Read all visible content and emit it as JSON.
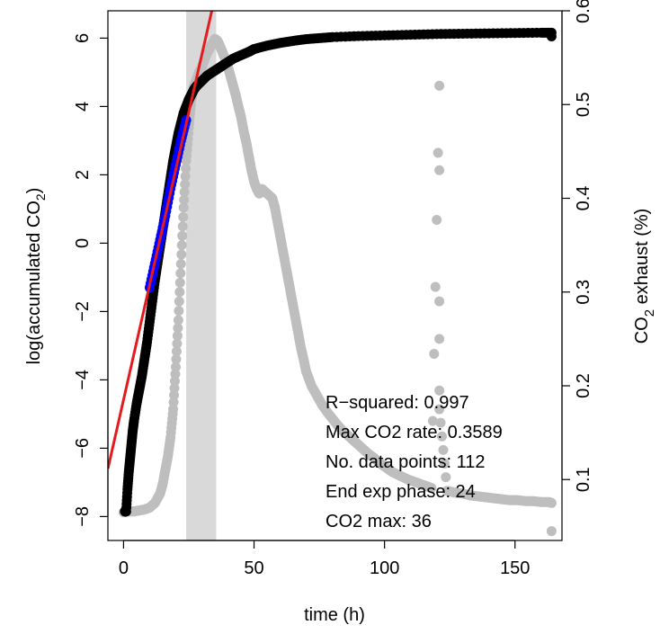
{
  "chart_data": {
    "type": "scatter",
    "xlabel": "time (h)",
    "ylabel_left": "log(accumulated CO",
    "ylabel_left_sub": "2",
    "ylabel_left_close": ")",
    "ylabel_right": "CO",
    "ylabel_right_sub": "2",
    "ylabel_right_rest": " exhaust (%)",
    "xlim": [
      -6,
      168
    ],
    "ylim_left": [
      -8.7,
      6.8
    ],
    "ylim_right": [
      0.035,
      0.6
    ],
    "x_ticks": [
      0,
      50,
      100,
      150
    ],
    "y_left_ticks": [
      -8,
      -6,
      -4,
      -2,
      0,
      2,
      4,
      6
    ],
    "y_right_ticks": [
      0.1,
      0.2,
      0.3,
      0.4,
      0.5,
      0.6
    ],
    "exp_phase_band": [
      24,
      35.5
    ],
    "band_color": "#d9d9d9",
    "fit_line": {
      "color": "#e41a1c",
      "slope": 0.3589,
      "points": [
        [
          -6,
          -6.6
        ],
        [
          35,
          7.2
        ]
      ]
    },
    "series": [
      {
        "color": "#000000",
        "axis": "left",
        "points": [
          [
            0.5,
            -7.85
          ],
          [
            1,
            -7.85
          ],
          [
            1.5,
            -7.2
          ],
          [
            2,
            -6.7
          ],
          [
            2.5,
            -6.3
          ],
          [
            3,
            -5.9
          ],
          [
            3.5,
            -5.5
          ],
          [
            4,
            -5.2
          ],
          [
            5,
            -4.7
          ],
          [
            6,
            -4.3
          ],
          [
            7,
            -3.9
          ],
          [
            8,
            -3.4
          ],
          [
            9,
            -2.9
          ],
          [
            10,
            -2.3
          ],
          [
            11,
            -1.7
          ],
          [
            12,
            -1.1
          ],
          [
            13,
            -0.6
          ],
          [
            14,
            -0.1
          ],
          [
            15,
            0.4
          ],
          [
            16,
            0.9
          ],
          [
            17,
            1.4
          ],
          [
            18,
            1.9
          ],
          [
            19,
            2.4
          ],
          [
            20,
            2.8
          ],
          [
            21,
            3.2
          ],
          [
            22,
            3.5
          ],
          [
            23,
            3.8
          ],
          [
            24,
            4.0
          ],
          [
            25,
            4.2
          ],
          [
            26,
            4.35
          ],
          [
            27,
            4.5
          ],
          [
            28,
            4.6
          ],
          [
            30,
            4.75
          ],
          [
            32,
            4.9
          ],
          [
            34,
            5.0
          ],
          [
            36,
            5.1
          ],
          [
            38,
            5.2
          ],
          [
            40,
            5.3
          ],
          [
            42,
            5.4
          ],
          [
            45,
            5.5
          ],
          [
            48,
            5.6
          ],
          [
            50,
            5.68
          ],
          [
            55,
            5.78
          ],
          [
            60,
            5.86
          ],
          [
            65,
            5.92
          ],
          [
            70,
            5.97
          ],
          [
            75,
            6.0
          ],
          [
            80,
            6.03
          ],
          [
            90,
            6.06
          ],
          [
            100,
            6.08
          ],
          [
            110,
            6.1
          ],
          [
            120,
            6.12
          ],
          [
            130,
            6.13
          ],
          [
            140,
            6.14
          ],
          [
            150,
            6.15
          ],
          [
            160,
            6.16
          ],
          [
            164,
            6.16
          ],
          [
            164,
            6.05
          ]
        ]
      },
      {
        "color": "#0000ff",
        "axis": "left",
        "points": [
          [
            10,
            -1.3
          ],
          [
            12,
            -0.6
          ],
          [
            14,
            0.1
          ],
          [
            16,
            0.8
          ],
          [
            18,
            1.6
          ],
          [
            20,
            2.3
          ],
          [
            22,
            3.0
          ],
          [
            24,
            3.6
          ]
        ]
      },
      {
        "color": "#bebebe",
        "axis": "right",
        "points": [
          [
            0,
            0.065
          ],
          [
            2,
            0.066
          ],
          [
            4,
            0.066
          ],
          [
            6,
            0.067
          ],
          [
            8,
            0.068
          ],
          [
            10,
            0.07
          ],
          [
            12,
            0.075
          ],
          [
            14,
            0.085
          ],
          [
            15,
            0.095
          ],
          [
            16,
            0.11
          ],
          [
            17,
            0.125
          ],
          [
            18,
            0.145
          ],
          [
            19,
            0.175
          ],
          [
            20,
            0.22
          ],
          [
            21,
            0.27
          ],
          [
            22,
            0.33
          ],
          [
            23,
            0.39
          ],
          [
            24,
            0.44
          ],
          [
            25,
            0.475
          ],
          [
            26,
            0.505
          ],
          [
            27,
            0.52
          ],
          [
            28,
            0.527
          ],
          [
            29,
            0.535
          ],
          [
            30,
            0.54
          ],
          [
            31,
            0.548
          ],
          [
            32,
            0.555
          ],
          [
            33,
            0.56
          ],
          [
            34,
            0.565
          ],
          [
            35,
            0.57
          ],
          [
            36,
            0.568
          ],
          [
            37,
            0.562
          ],
          [
            38,
            0.555
          ],
          [
            39,
            0.548
          ],
          [
            40,
            0.54
          ],
          [
            41,
            0.53
          ],
          [
            42,
            0.52
          ],
          [
            43,
            0.51
          ],
          [
            44,
            0.498
          ],
          [
            45,
            0.487
          ],
          [
            46,
            0.472
          ],
          [
            47,
            0.46
          ],
          [
            48,
            0.445
          ],
          [
            49,
            0.43
          ],
          [
            50,
            0.418
          ],
          [
            51,
            0.41
          ],
          [
            52,
            0.405
          ],
          [
            53,
            0.41
          ],
          [
            55,
            0.405
          ],
          [
            57,
            0.4
          ],
          [
            58,
            0.39
          ],
          [
            59,
            0.375
          ],
          [
            60,
            0.36
          ],
          [
            61,
            0.345
          ],
          [
            62,
            0.33
          ],
          [
            63,
            0.315
          ],
          [
            64,
            0.3
          ],
          [
            65,
            0.285
          ],
          [
            66,
            0.27
          ],
          [
            67,
            0.255
          ],
          [
            68,
            0.24
          ],
          [
            69,
            0.228
          ],
          [
            70,
            0.215
          ],
          [
            72,
            0.2
          ],
          [
            74,
            0.19
          ],
          [
            76,
            0.18
          ],
          [
            78,
            0.172
          ],
          [
            80,
            0.165
          ],
          [
            82,
            0.158
          ],
          [
            84,
            0.152
          ],
          [
            86,
            0.147
          ],
          [
            88,
            0.142
          ],
          [
            90,
            0.137
          ],
          [
            92,
            0.132
          ],
          [
            94,
            0.127
          ],
          [
            96,
            0.123
          ],
          [
            98,
            0.118
          ],
          [
            100,
            0.114
          ],
          [
            103,
            0.108
          ],
          [
            106,
            0.104
          ],
          [
            109,
            0.1
          ],
          [
            112,
            0.097
          ],
          [
            115,
            0.094
          ],
          [
            118,
            0.091
          ],
          [
            121,
            0.52
          ],
          [
            121,
            0.43
          ],
          [
            121,
            0.29
          ],
          [
            121,
            0.25
          ],
          [
            121,
            0.195
          ],
          [
            121,
            0.175
          ],
          [
            124,
            0.088
          ],
          [
            127,
            0.086
          ],
          [
            130,
            0.085
          ],
          [
            133,
            0.083
          ],
          [
            136,
            0.082
          ],
          [
            139,
            0.081
          ],
          [
            142,
            0.08
          ],
          [
            145,
            0.079
          ],
          [
            148,
            0.078
          ],
          [
            151,
            0.078
          ],
          [
            154,
            0.077
          ],
          [
            157,
            0.077
          ],
          [
            160,
            0.076
          ],
          [
            163,
            0.076
          ],
          [
            164,
            0.075
          ],
          [
            164,
            0.045
          ]
        ]
      }
    ]
  },
  "stats": {
    "r_squared": "R−squared: 0.997",
    "max_rate": "Max CO2 rate: 0.3589",
    "n_points": "No. data points: 112",
    "end_exp": "End exp phase: 24",
    "co2_max": "CO2 max: 36"
  }
}
